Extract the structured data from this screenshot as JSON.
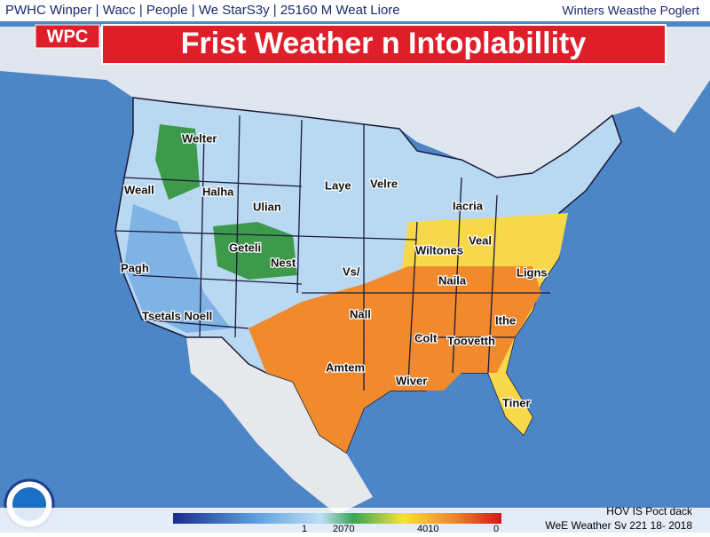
{
  "header": {
    "nav": "PWHC Winper | Wacc | People | We StarS3y | 25160 M Weat Liore",
    "right": "Winters Weasthe Poglert"
  },
  "banner": {
    "badge": "WPC",
    "title": "Frist Weather n Intoplabillity"
  },
  "map_labels": [
    "Welter",
    "Weall",
    "Halha",
    "Ulian",
    "Laye",
    "Velre",
    "Iacria",
    "Geteli",
    "Nest",
    "Vs/",
    "Wiltones",
    "Veal",
    "Naila",
    "Ligns",
    "Pagh",
    "Nall",
    "Colt",
    "Toovetth",
    "Ithe",
    "Amtem",
    "Wiver",
    "Tiner",
    "Tsetals Noell"
  ],
  "legend": {
    "labels": [
      "1",
      "2070",
      "4010",
      "0"
    ]
  },
  "footer": {
    "line1": "HOV IS Poct dack",
    "line2": "WeE Weather Sv 221 18- 2018"
  }
}
